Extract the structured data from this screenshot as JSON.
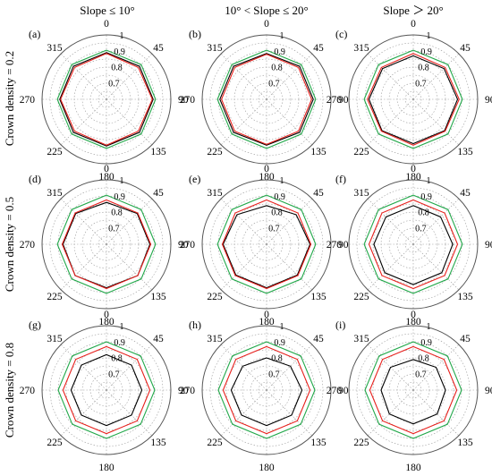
{
  "figure": {
    "column_titles": [
      "Slope ≤ 10°",
      "10° < Slope ≤ 20°",
      "Slope ＞ 20°"
    ],
    "row_titles": [
      "Crown density = 0.2",
      "Crown density = 0.5",
      "Crown density = 0.8"
    ]
  },
  "colors": {
    "black_series": "#000000",
    "red_series": "#e8211d",
    "green_series": "#22a84a",
    "grid": "#9a9a9a",
    "frame": "#555555"
  },
  "chart_data": [
    {
      "panel": "(a)",
      "type": "radar",
      "angles": [
        0,
        45,
        90,
        135,
        180,
        225,
        270,
        315
      ],
      "rticks": [
        0.7,
        0.8,
        0.9,
        1
      ],
      "rlim": [
        0.6,
        1.0
      ],
      "grid": true,
      "series": [
        {
          "color": "#000000",
          "values": [
            0.89,
            0.89,
            0.89,
            0.89,
            0.89,
            0.89,
            0.89,
            0.89
          ]
        },
        {
          "color": "#e8211d",
          "values": [
            0.885,
            0.88,
            0.885,
            0.88,
            0.885,
            0.88,
            0.885,
            0.88
          ]
        },
        {
          "color": "#22a84a",
          "values": [
            0.905,
            0.905,
            0.905,
            0.905,
            0.905,
            0.905,
            0.905,
            0.905
          ]
        }
      ]
    },
    {
      "panel": "(b)",
      "type": "radar",
      "angles": [
        0,
        45,
        90,
        135,
        180,
        225,
        270,
        315
      ],
      "rticks": [
        0.7,
        0.8,
        0.9,
        1
      ],
      "rlim": [
        0.6,
        1.0
      ],
      "grid": true,
      "series": [
        {
          "color": "#000000",
          "values": [
            0.885,
            0.89,
            0.89,
            0.89,
            0.885,
            0.89,
            0.89,
            0.89
          ]
        },
        {
          "color": "#e8211d",
          "values": [
            0.88,
            0.88,
            0.88,
            0.88,
            0.88,
            0.88,
            0.88,
            0.88
          ]
        },
        {
          "color": "#22a84a",
          "values": [
            0.905,
            0.905,
            0.905,
            0.905,
            0.905,
            0.905,
            0.905,
            0.905
          ]
        }
      ]
    },
    {
      "panel": "(c)",
      "type": "radar",
      "angles": [
        0,
        45,
        90,
        135,
        180,
        225,
        270,
        315
      ],
      "rticks": [
        0.7,
        0.8,
        0.9,
        1
      ],
      "rlim": [
        0.6,
        1.0
      ],
      "grid": true,
      "series": [
        {
          "color": "#000000",
          "values": [
            0.87,
            0.87,
            0.875,
            0.875,
            0.875,
            0.875,
            0.875,
            0.87
          ]
        },
        {
          "color": "#e8211d",
          "values": [
            0.885,
            0.88,
            0.885,
            0.88,
            0.885,
            0.88,
            0.885,
            0.88
          ]
        },
        {
          "color": "#22a84a",
          "values": [
            0.905,
            0.905,
            0.905,
            0.905,
            0.905,
            0.905,
            0.905,
            0.905
          ]
        }
      ]
    },
    {
      "panel": "(d)",
      "type": "radar",
      "angles": [
        0,
        45,
        90,
        135,
        180,
        225,
        270,
        315
      ],
      "rticks": [
        0.7,
        0.8,
        0.9,
        1
      ],
      "rlim": [
        0.6,
        1.0
      ],
      "grid": true,
      "series": [
        {
          "color": "#000000",
          "values": [
            0.86,
            0.87,
            0.87,
            0.875,
            0.87,
            0.875,
            0.87,
            0.87
          ]
        },
        {
          "color": "#e8211d",
          "values": [
            0.875,
            0.875,
            0.875,
            0.875,
            0.875,
            0.875,
            0.875,
            0.875
          ]
        },
        {
          "color": "#22a84a",
          "values": [
            0.905,
            0.905,
            0.905,
            0.905,
            0.905,
            0.905,
            0.905,
            0.905
          ]
        }
      ]
    },
    {
      "panel": "(e)",
      "type": "radar",
      "angles": [
        0,
        45,
        90,
        135,
        180,
        225,
        270,
        315
      ],
      "rticks": [
        0.7,
        0.8,
        0.9,
        1
      ],
      "rlim": [
        0.6,
        1.0
      ],
      "grid": true,
      "series": [
        {
          "color": "#000000",
          "values": [
            0.84,
            0.86,
            0.87,
            0.87,
            0.87,
            0.87,
            0.87,
            0.86
          ]
        },
        {
          "color": "#e8211d",
          "values": [
            0.875,
            0.875,
            0.875,
            0.875,
            0.875,
            0.875,
            0.875,
            0.875
          ]
        },
        {
          "color": "#22a84a",
          "values": [
            0.905,
            0.905,
            0.905,
            0.905,
            0.905,
            0.905,
            0.905,
            0.905
          ]
        }
      ]
    },
    {
      "panel": "(f)",
      "type": "radar",
      "angles": [
        0,
        45,
        90,
        135,
        180,
        225,
        270,
        315
      ],
      "rticks": [
        0.7,
        0.8,
        0.9,
        1
      ],
      "rlim": [
        0.6,
        1.0
      ],
      "grid": true,
      "series": [
        {
          "color": "#000000",
          "values": [
            0.84,
            0.84,
            0.845,
            0.85,
            0.85,
            0.85,
            0.845,
            0.84
          ]
        },
        {
          "color": "#e8211d",
          "values": [
            0.875,
            0.875,
            0.875,
            0.875,
            0.875,
            0.875,
            0.875,
            0.875
          ]
        },
        {
          "color": "#22a84a",
          "values": [
            0.905,
            0.905,
            0.905,
            0.905,
            0.905,
            0.905,
            0.905,
            0.905
          ]
        }
      ]
    },
    {
      "panel": "(g)",
      "type": "radar",
      "angles": [
        0,
        45,
        90,
        135,
        180,
        225,
        270,
        315
      ],
      "rticks": [
        0.7,
        0.8,
        0.9,
        1
      ],
      "rlim": [
        0.6,
        1.0
      ],
      "grid": true,
      "series": [
        {
          "color": "#000000",
          "values": [
            0.82,
            0.82,
            0.82,
            0.82,
            0.82,
            0.82,
            0.82,
            0.82
          ]
        },
        {
          "color": "#e8211d",
          "values": [
            0.87,
            0.87,
            0.87,
            0.87,
            0.87,
            0.87,
            0.87,
            0.87
          ]
        },
        {
          "color": "#22a84a",
          "values": [
            0.9,
            0.9,
            0.9,
            0.9,
            0.9,
            0.9,
            0.9,
            0.9
          ]
        }
      ]
    },
    {
      "panel": "(h)",
      "type": "radar",
      "angles": [
        0,
        45,
        90,
        135,
        180,
        225,
        270,
        315
      ],
      "rticks": [
        0.7,
        0.8,
        0.9,
        1
      ],
      "rlim": [
        0.6,
        1.0
      ],
      "grid": true,
      "series": [
        {
          "color": "#000000",
          "values": [
            0.8,
            0.81,
            0.82,
            0.82,
            0.82,
            0.82,
            0.82,
            0.81
          ]
        },
        {
          "color": "#e8211d",
          "values": [
            0.87,
            0.87,
            0.87,
            0.87,
            0.87,
            0.87,
            0.87,
            0.87
          ]
        },
        {
          "color": "#22a84a",
          "values": [
            0.9,
            0.9,
            0.9,
            0.9,
            0.9,
            0.9,
            0.9,
            0.9
          ]
        }
      ]
    },
    {
      "panel": "(i)",
      "type": "radar",
      "angles": [
        0,
        45,
        90,
        135,
        180,
        225,
        270,
        315
      ],
      "rticks": [
        0.7,
        0.8,
        0.9,
        1
      ],
      "rlim": [
        0.6,
        1.0
      ],
      "grid": true,
      "series": [
        {
          "color": "#000000",
          "values": [
            0.79,
            0.8,
            0.8,
            0.81,
            0.81,
            0.81,
            0.8,
            0.8
          ]
        },
        {
          "color": "#e8211d",
          "values": [
            0.87,
            0.87,
            0.87,
            0.87,
            0.87,
            0.87,
            0.87,
            0.87
          ]
        },
        {
          "color": "#22a84a",
          "values": [
            0.9,
            0.9,
            0.9,
            0.9,
            0.9,
            0.9,
            0.9,
            0.9
          ]
        }
      ]
    }
  ]
}
